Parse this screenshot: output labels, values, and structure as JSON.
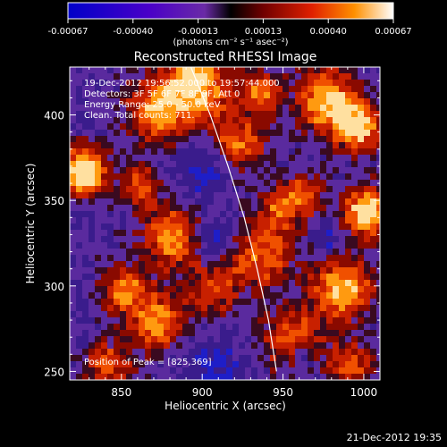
{
  "chart_data": {
    "type": "heatmap",
    "title": "Reconstructed RHESSI Image",
    "xlabel": "Heliocentric X (arcsec)",
    "ylabel": "Heliocentric Y (arcsec)",
    "xlim": [
      818,
      1010
    ],
    "ylim": [
      245,
      428
    ],
    "xticks": [
      850,
      900,
      950,
      1000
    ],
    "yticks": [
      250,
      300,
      350,
      400
    ],
    "colorbar": {
      "min": -0.00067,
      "max": 0.00067,
      "ticks": [
        "-0.00067",
        "-0.00040",
        "-0.00013",
        "0.00013",
        "0.00040",
        "0.00067"
      ],
      "label": "(photons cm⁻² s⁻¹ asec⁻²)"
    },
    "annotations": [
      "19-Dec-2012 19:56:52.000 to 19:57:44.000",
      "Detectors: 3F 5F 6F 7F 8F 9F, Att 0",
      "Energy Range: 25.0 - 50.0 keV",
      "Clean.    Total counts: 711."
    ],
    "peak_label": "Position of Peak = [825,369]",
    "peak": [
      825,
      369
    ],
    "limb_points": [
      [
        893,
        428
      ],
      [
        905,
        400
      ],
      [
        916,
        370
      ],
      [
        926,
        340
      ],
      [
        934,
        310
      ],
      [
        941,
        280
      ],
      [
        946,
        250
      ]
    ],
    "grid": false,
    "legend": "none"
  },
  "footer": "21-Dec-2012 19:35"
}
